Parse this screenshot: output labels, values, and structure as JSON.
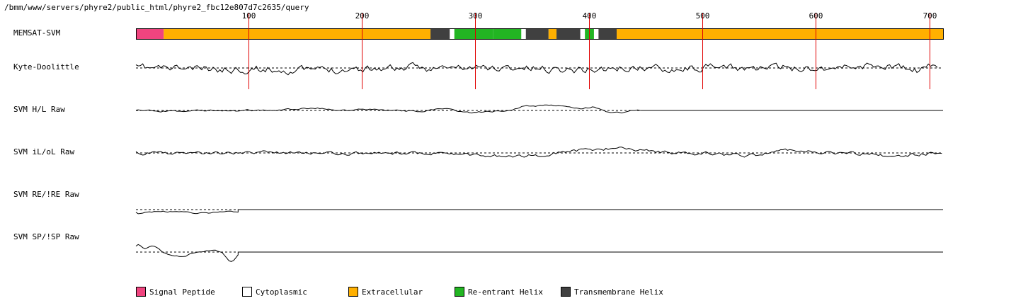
{
  "header": {
    "path": "/bmm/www/servers/phyre2/public_html/phyre2_fbc12e807d7c2635/query"
  },
  "colors": {
    "signal": "#f0447f",
    "cytoplasmic": "#ffffff",
    "extracellular": "#ffb000",
    "reentrant": "#22b522",
    "transmembrane": "#404040",
    "marker": "#e00000",
    "trace": "#000000"
  },
  "chart_data": {
    "type": "line",
    "sequence_length": 712,
    "x_ticks": [
      100,
      200,
      300,
      400,
      500,
      600,
      700
    ],
    "tracks": [
      {
        "label": "MEMSAT-SVM",
        "kind": "topology"
      },
      {
        "label": "Kyte-Doolittle",
        "kind": "profile"
      },
      {
        "label": "SVM H/L Raw",
        "kind": "profile"
      },
      {
        "label": "SVM iL/oL Raw",
        "kind": "profile"
      },
      {
        "label": "SVM RE/!RE Raw",
        "kind": "profile"
      },
      {
        "label": "SVM SP/!SP Raw",
        "kind": "profile"
      }
    ],
    "topology_segments": [
      {
        "start": 1,
        "end": 25,
        "type": "signal"
      },
      {
        "start": 26,
        "end": 260,
        "type": "extracellular"
      },
      {
        "start": 261,
        "end": 277,
        "type": "transmembrane"
      },
      {
        "start": 278,
        "end": 281,
        "type": "cytoplasmic"
      },
      {
        "start": 282,
        "end": 315,
        "type": "reentrant"
      },
      {
        "start": 316,
        "end": 340,
        "type": "reentrant"
      },
      {
        "start": 341,
        "end": 344,
        "type": "cytoplasmic"
      },
      {
        "start": 345,
        "end": 364,
        "type": "transmembrane"
      },
      {
        "start": 365,
        "end": 371,
        "type": "extracellular"
      },
      {
        "start": 372,
        "end": 392,
        "type": "transmembrane"
      },
      {
        "start": 393,
        "end": 396,
        "type": "cytoplasmic"
      },
      {
        "start": 397,
        "end": 404,
        "type": "reentrant"
      },
      {
        "start": 405,
        "end": 408,
        "type": "cytoplasmic"
      },
      {
        "start": 409,
        "end": 424,
        "type": "transmembrane"
      },
      {
        "start": 425,
        "end": 712,
        "type": "extracellular"
      }
    ]
  },
  "legend": [
    {
      "key": "signal",
      "label": "Signal Peptide"
    },
    {
      "key": "cytoplasmic",
      "label": "Cytoplasmic"
    },
    {
      "key": "extracellular",
      "label": "Extracellular"
    },
    {
      "key": "reentrant",
      "label": "Re-entrant Helix"
    },
    {
      "key": "transmembrane",
      "label": "Transmembrane Helix"
    }
  ]
}
